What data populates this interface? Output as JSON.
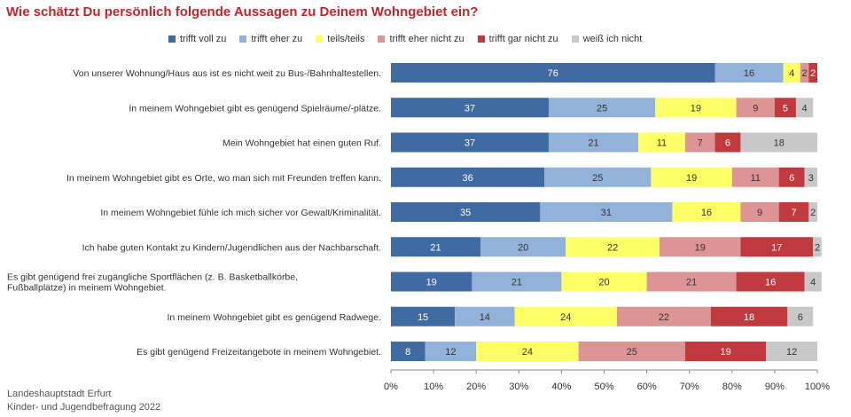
{
  "chart_data": {
    "type": "bar",
    "orientation": "horizontal",
    "stacked": true,
    "title": "Wie schätzt Du persönlich folgende Aussagen zu Deinem Wohngebiet ein?",
    "categories": [
      "Von unserer Wohnung/Haus aus ist es nicht weit zu Bus-/Bahnhaltestellen.",
      "In meinem Wohngebiet gibt es genügend Spielräume/-plätze.",
      "Mein Wohngebiet hat einen guten Ruf.",
      "In meinem Wohngebiet gibt es Orte, wo man sich mit Freunden treffen kann.",
      "In meinem Wohngebiet fühle ich mich sicher vor Gewalt/Kriminalität.",
      "Ich habe guten Kontakt zu Kindern/Jugendlichen aus der Nachbarschaft.",
      "Es gibt genügend frei zugängliche Sportflächen (z. B. Basketballkörbe, Fußballplätze) in meinem Wohngebiet.",
      "In meinem Wohngebiet gibt es genügend Radwege.",
      "Es gibt genügend Freizeitangebote in meinem Wohngebiet."
    ],
    "series": [
      {
        "name": "trifft voll zu",
        "color": "#3f6aa2",
        "values": [
          76,
          37,
          37,
          36,
          35,
          21,
          19,
          15,
          8
        ]
      },
      {
        "name": "trifft eher zu",
        "color": "#93b2da",
        "values": [
          16,
          25,
          21,
          25,
          31,
          20,
          21,
          14,
          12
        ]
      },
      {
        "name": "teils/teils",
        "color": "#ffff66",
        "values": [
          4,
          19,
          11,
          19,
          16,
          22,
          20,
          24,
          24
        ]
      },
      {
        "name": "trifft eher nicht zu",
        "color": "#dd9494",
        "values": [
          2,
          9,
          7,
          11,
          9,
          19,
          21,
          22,
          25
        ]
      },
      {
        "name": "trifft gar nicht zu",
        "color": "#c0393f",
        "values": [
          2,
          5,
          6,
          6,
          7,
          17,
          16,
          18,
          19
        ]
      },
      {
        "name": "weiß ich nicht",
        "color": "#c8c8c8",
        "values": [
          0,
          4,
          18,
          3,
          2,
          2,
          4,
          6,
          12
        ]
      }
    ],
    "xlim": [
      0,
      100
    ],
    "x_ticks": [
      "0%",
      "10%",
      "20%",
      "30%",
      "40%",
      "50%",
      "60%",
      "70%",
      "80%",
      "90%",
      "100%"
    ],
    "grid": false,
    "legend_position": "top"
  },
  "source": {
    "line1": "Landeshauptstadt Erfurt",
    "line2": "Kinder- und Jugendbefragung 2022"
  }
}
